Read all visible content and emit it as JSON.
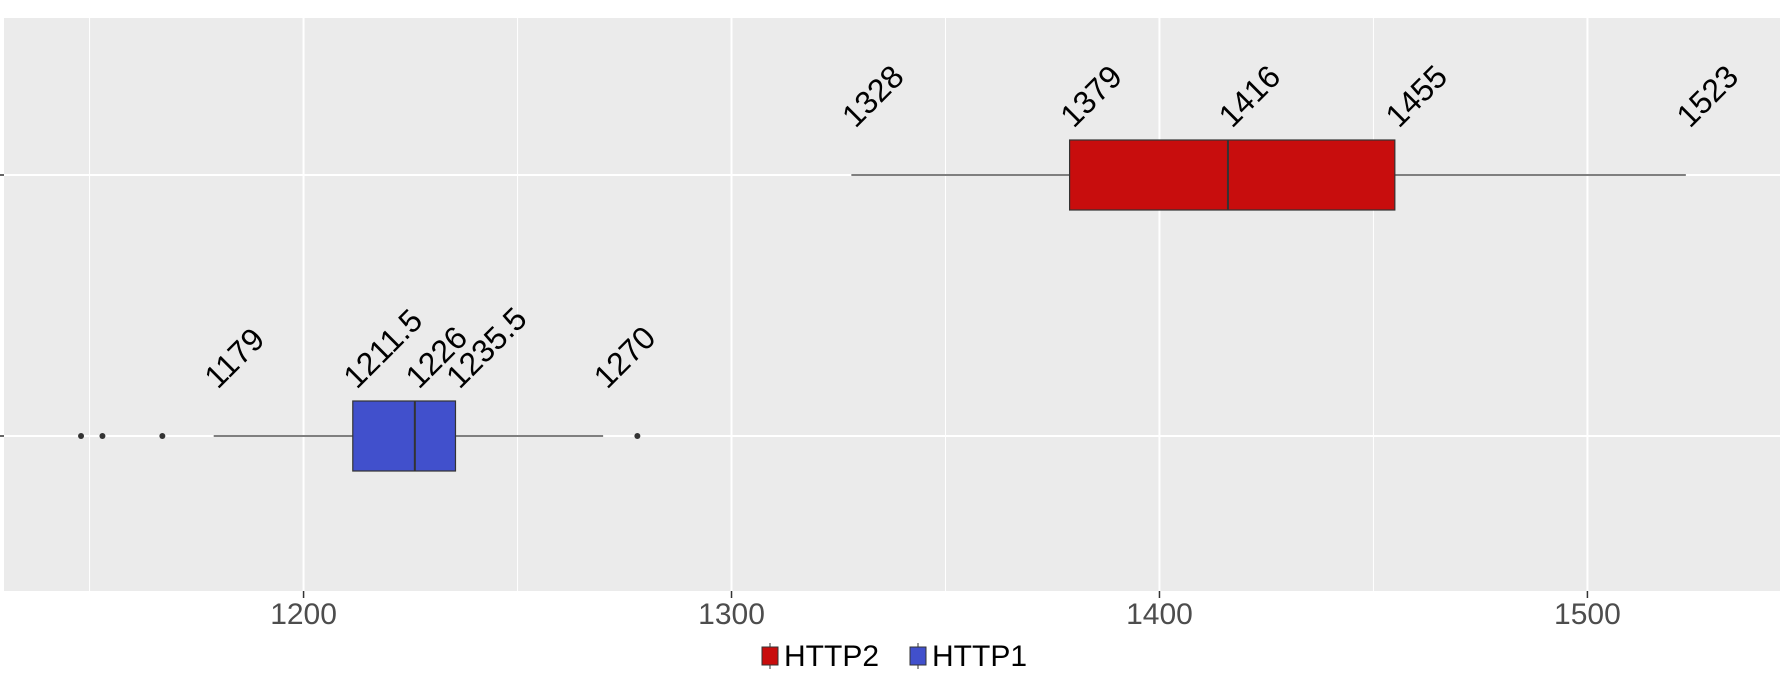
{
  "chart_data": {
    "type": "boxplot",
    "orientation": "horizontal",
    "title": "",
    "xlabel": "",
    "ylabel": "",
    "xlim": [
      1130,
      1545
    ],
    "x_ticks": [
      1200,
      1300,
      1400,
      1500
    ],
    "x_tick_labels": [
      "1200",
      "1300",
      "1400",
      "1500"
    ],
    "grid": true,
    "legend_position": "bottom",
    "series": [
      {
        "name": "HTTP1",
        "color": "#4150cc",
        "whisker_low": 1179,
        "q1": 1211.5,
        "median": 1226,
        "q3": 1235.5,
        "whisker_high": 1270,
        "outliers": [
          1148,
          1153,
          1167,
          1278
        ],
        "labels": [
          "1179",
          "1211.5",
          "1226",
          "1235.5",
          "1270"
        ]
      },
      {
        "name": "HTTP2",
        "color": "#c80d0d",
        "whisker_low": 1328,
        "q1": 1379,
        "median": 1416,
        "q3": 1455,
        "whisker_high": 1523,
        "outliers": [],
        "labels": [
          "1328",
          "1379",
          "1416",
          "1455",
          "1523"
        ]
      }
    ],
    "legend": [
      {
        "name": "HTTP2",
        "color": "#c80d0d"
      },
      {
        "name": "HTTP1",
        "color": "#4150cc"
      }
    ]
  }
}
